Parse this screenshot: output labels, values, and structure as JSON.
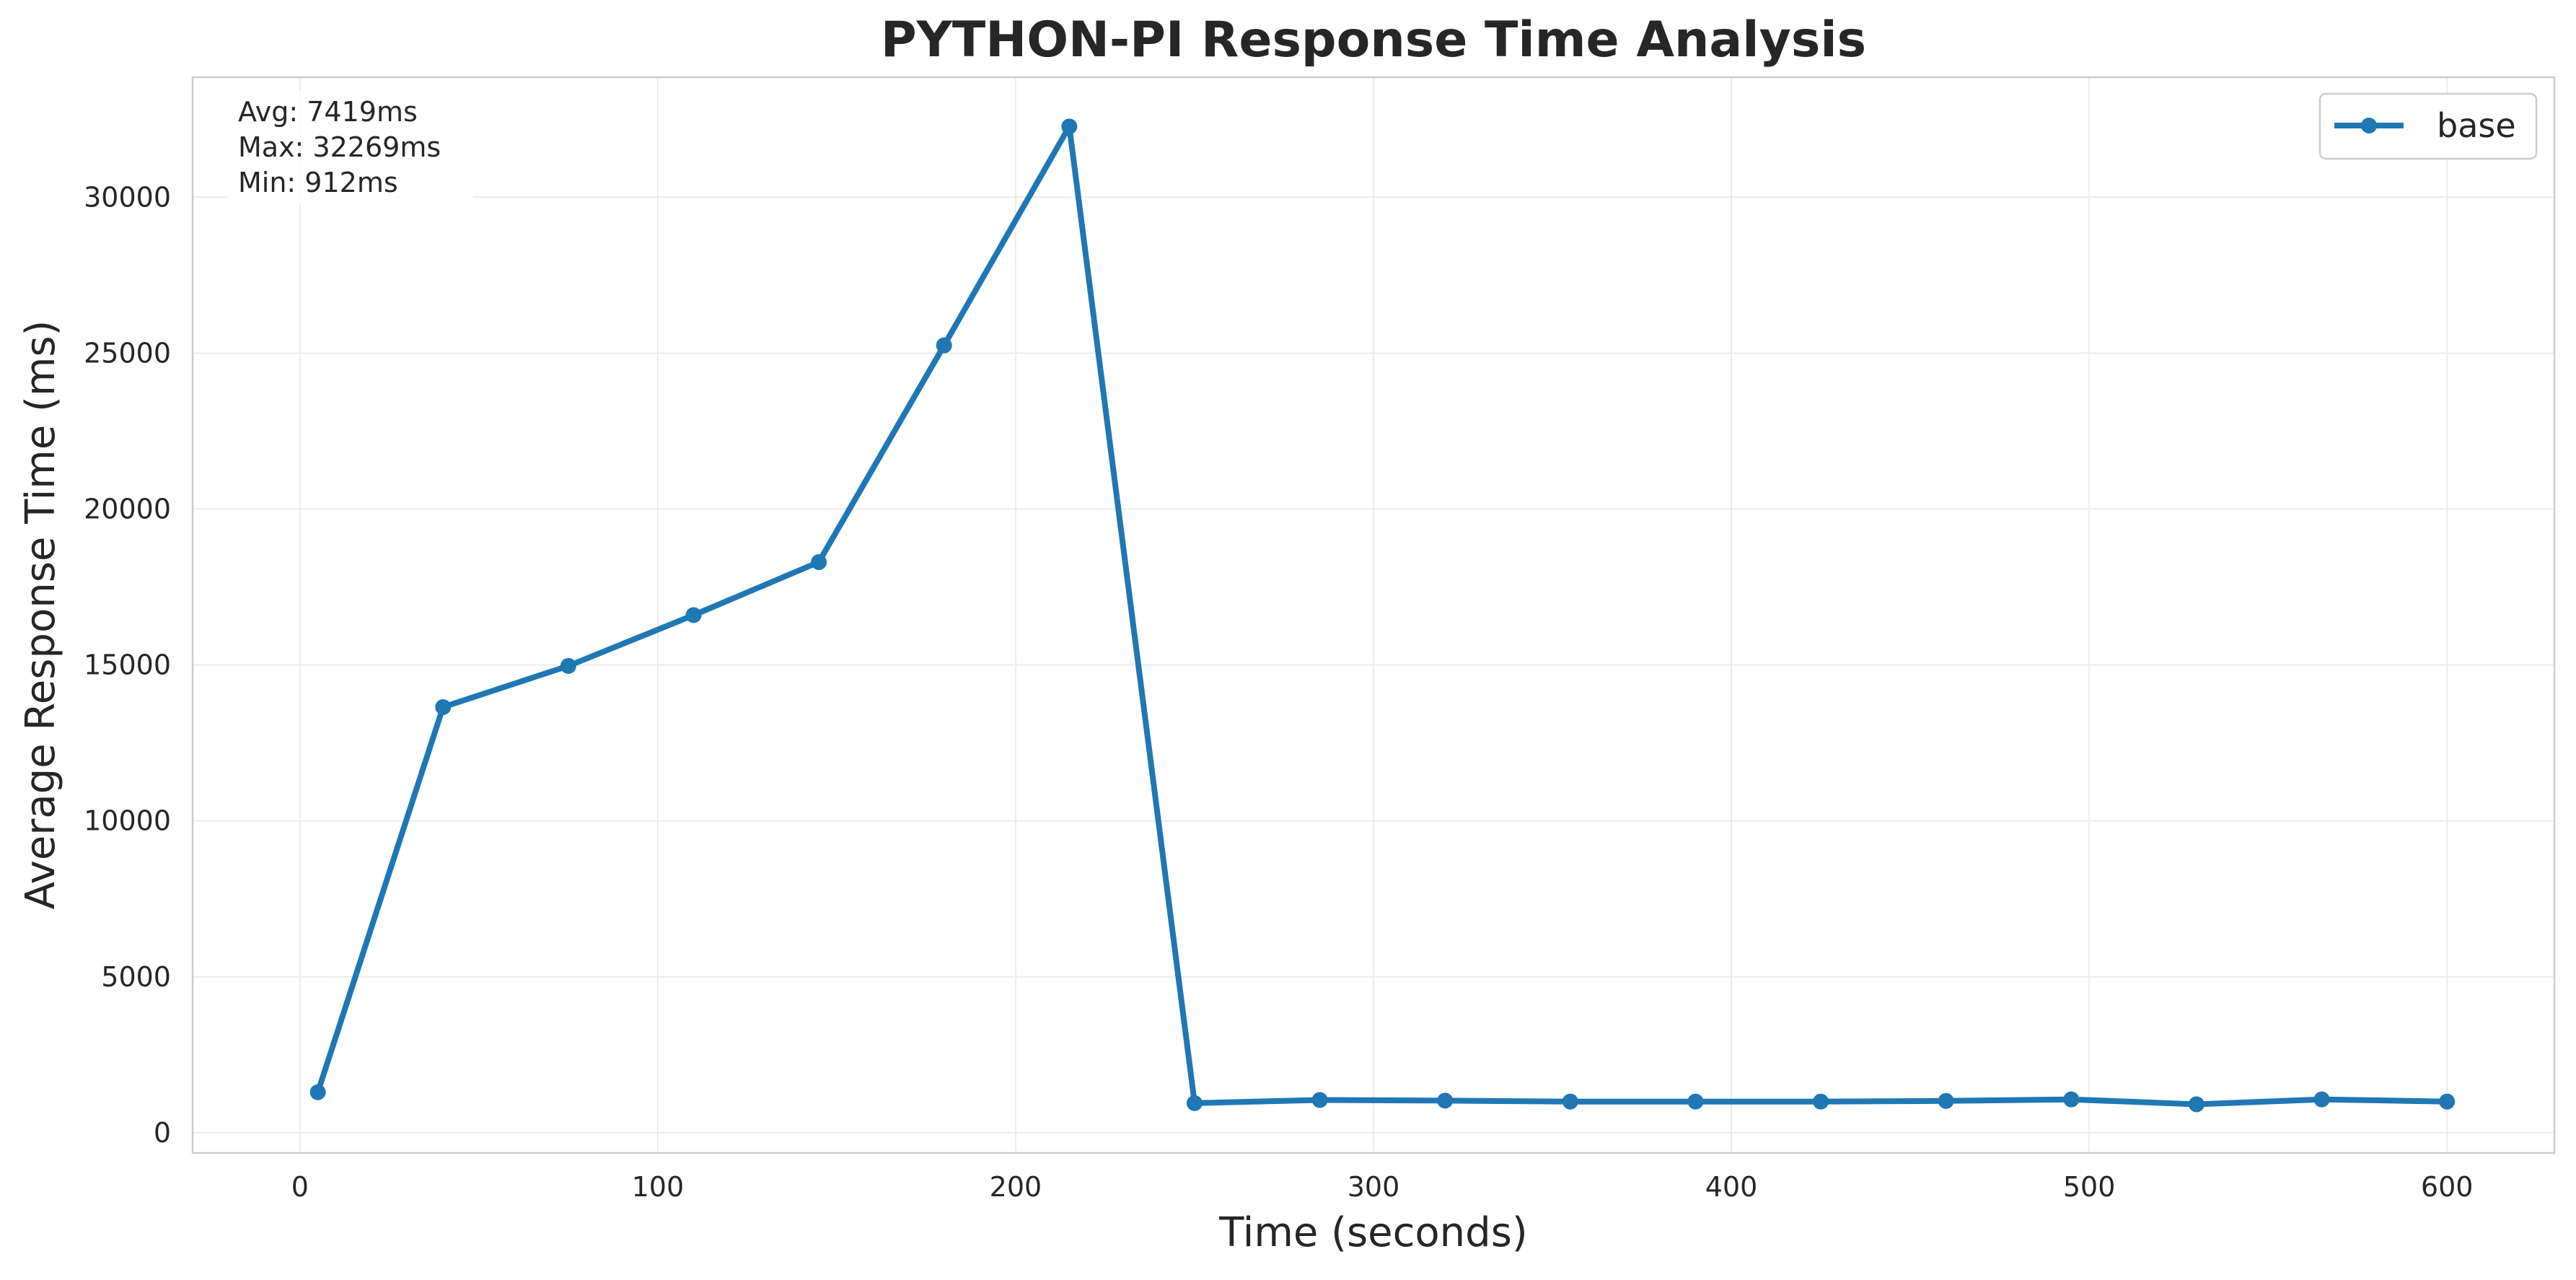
{
  "chart_data": {
    "type": "line",
    "title": "PYTHON-PI Response Time Analysis",
    "xlabel": "Time (seconds)",
    "ylabel": "Average Response Time (ms)",
    "xlim": [
      -30,
      630
    ],
    "ylim": [
      -650,
      33850
    ],
    "xticks": [
      0,
      100,
      200,
      300,
      400,
      500,
      600
    ],
    "yticks": [
      0,
      5000,
      10000,
      15000,
      20000,
      25000,
      30000
    ],
    "grid": true,
    "legend_position": "top-right",
    "series": [
      {
        "name": "base",
        "color": "#1f77b4",
        "x": [
          5,
          40,
          75,
          110,
          145,
          180,
          215,
          250,
          285,
          320,
          355,
          390,
          425,
          460,
          495,
          530,
          565,
          600
        ],
        "y": [
          1300,
          13650,
          14970,
          16600,
          18300,
          25250,
          32269,
          950,
          1050,
          1030,
          1000,
          1000,
          1000,
          1020,
          1070,
          912,
          1070,
          1000
        ]
      }
    ],
    "stats": {
      "avg": "Avg: 7419ms",
      "max": "Max: 32269ms",
      "min": "Min: 912ms"
    }
  }
}
